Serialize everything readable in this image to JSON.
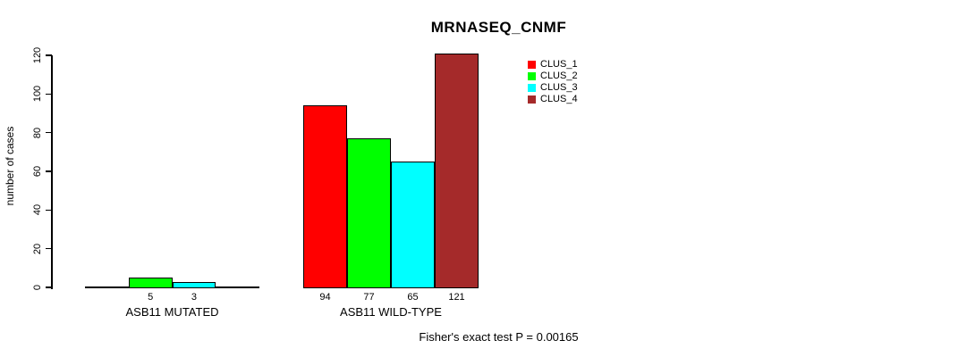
{
  "page": {
    "background": "#ffffff"
  },
  "chart_data": {
    "type": "bar",
    "title": "MRNASEQ_CNMF",
    "ylabel": "number of cases",
    "xlabel": "",
    "footer": "Fisher's exact test P = 0.00165",
    "ylim": [
      0,
      120
    ],
    "yticks": [
      0,
      20,
      40,
      60,
      80,
      100,
      120
    ],
    "grid": false,
    "legend_position": "top-right-inside",
    "series": [
      "CLUS_1",
      "CLUS_2",
      "CLUS_3",
      "CLUS_4"
    ],
    "legend": [
      {
        "label": "CLUS_1",
        "color": "#FF0000"
      },
      {
        "label": "CLUS_2",
        "color": "#00FF00"
      },
      {
        "label": "CLUS_3",
        "color": "#00FFFF"
      },
      {
        "label": "CLUS_4",
        "color": "#A52A2A"
      }
    ],
    "groups": [
      {
        "label": "ASB11 MUTATED",
        "values": [
          0,
          5,
          3,
          0
        ]
      },
      {
        "label": "ASB11 WILD-TYPE",
        "values": [
          94,
          77,
          65,
          121
        ]
      }
    ],
    "bar_value_labels": {
      "ASB11 MUTATED": [
        "5",
        "3"
      ],
      "ASB11 WILD-TYPE": [
        "94",
        "77",
        "65",
        "121"
      ]
    }
  }
}
